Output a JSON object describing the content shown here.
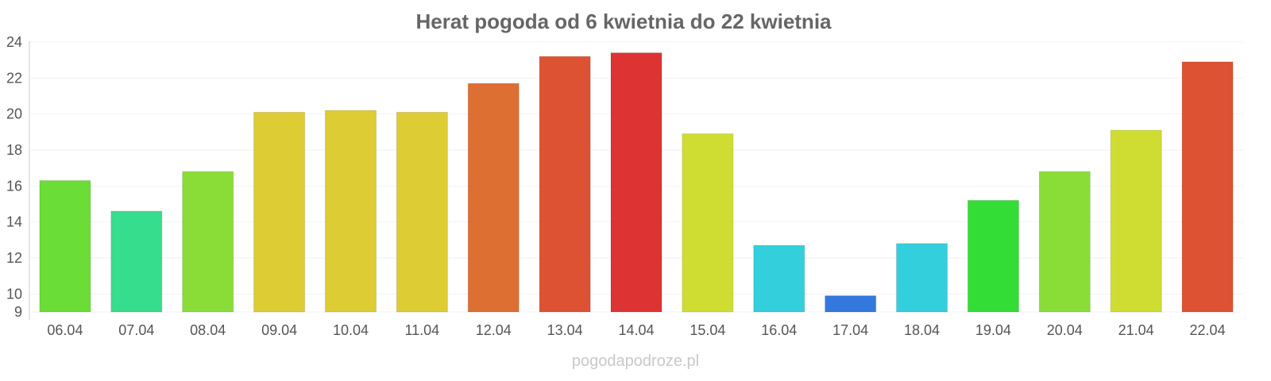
{
  "chart_data": {
    "type": "bar",
    "title": "Herat pogoda od 6 kwietnia do 22 kwietnia",
    "xlabel": "",
    "ylabel": "",
    "ylim": [
      9,
      24
    ],
    "yticks": [
      9,
      10,
      12,
      14,
      16,
      18,
      20,
      22,
      24
    ],
    "grid": true,
    "categories": [
      "06.04",
      "07.04",
      "08.04",
      "09.04",
      "10.04",
      "11.04",
      "12.04",
      "13.04",
      "14.04",
      "15.04",
      "16.04",
      "17.04",
      "18.04",
      "19.04",
      "20.04",
      "21.04",
      "22.04"
    ],
    "values": [
      16.3,
      14.6,
      16.8,
      20.1,
      20.2,
      20.1,
      21.7,
      23.2,
      23.4,
      18.9,
      12.7,
      9.9,
      12.8,
      15.2,
      16.8,
      19.1,
      22.9
    ],
    "colors": [
      "#6add36",
      "#36dd8c",
      "#8add36",
      "#ddcc33",
      "#ddcc33",
      "#ddcc33",
      "#dd6f33",
      "#dd5233",
      "#dd3333",
      "#cfdd33",
      "#33cfdd",
      "#3378dd",
      "#33cfdd",
      "#33dd36",
      "#8add36",
      "#cfdd33",
      "#dd5233"
    ]
  },
  "credit": "pogodapodroze.pl"
}
